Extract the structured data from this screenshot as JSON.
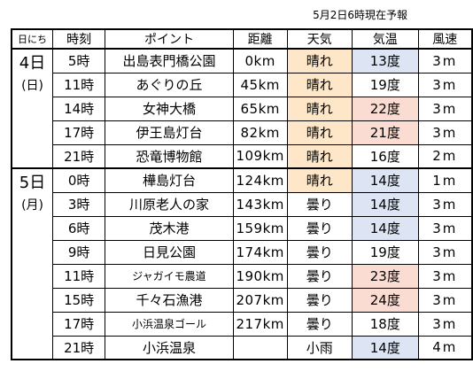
{
  "note": "5月2日6時現在予報",
  "headers": {
    "day": "日にち",
    "time": "時刻",
    "point": "ポイント",
    "distance": "距離",
    "weather": "天気",
    "temp": "気温",
    "wind": "風速"
  },
  "colors": {
    "sunny_bg": "#fde7c8",
    "cool_bg": "#dde4f3",
    "warm_bg": "#fbdcd3"
  },
  "days": [
    {
      "day": "4日",
      "weekday": "(日)",
      "rows": [
        {
          "time": "5時",
          "point": "出島表門橋公園",
          "distance": "0km",
          "weather": "晴れ",
          "weather_bg": "sunny",
          "temp": "13度",
          "temp_bg": "cool",
          "wind": "3m"
        },
        {
          "time": "11時",
          "point": "あぐりの丘",
          "distance": "45km",
          "weather": "晴れ",
          "weather_bg": "sunny",
          "temp": "19度",
          "temp_bg": "",
          "wind": "3m"
        },
        {
          "time": "14時",
          "point": "女神大橋",
          "distance": "65km",
          "weather": "晴れ",
          "weather_bg": "sunny",
          "temp": "22度",
          "temp_bg": "warm",
          "wind": "3m"
        },
        {
          "time": "17時",
          "point": "伊王島灯台",
          "distance": "82km",
          "weather": "晴れ",
          "weather_bg": "sunny",
          "temp": "21度",
          "temp_bg": "warm",
          "wind": "3m"
        },
        {
          "time": "21時",
          "point": "恐竜博物館",
          "distance": "109km",
          "weather": "晴れ",
          "weather_bg": "sunny",
          "temp": "16度",
          "temp_bg": "",
          "wind": "2m"
        }
      ]
    },
    {
      "day": "5日",
      "weekday": "(月)",
      "rows": [
        {
          "time": "0時",
          "point": "樺島灯台",
          "distance": "124km",
          "weather": "晴れ",
          "weather_bg": "sunny",
          "temp": "14度",
          "temp_bg": "cool",
          "wind": "1m"
        },
        {
          "time": "3時",
          "point": "川原老人の家",
          "distance": "143km",
          "weather": "曇り",
          "weather_bg": "",
          "temp": "14度",
          "temp_bg": "cool",
          "wind": "3m"
        },
        {
          "time": "6時",
          "point": "茂木港",
          "distance": "159km",
          "weather": "曇り",
          "weather_bg": "",
          "temp": "14度",
          "temp_bg": "cool",
          "wind": "3m"
        },
        {
          "time": "9時",
          "point": "日見公園",
          "distance": "174km",
          "weather": "曇り",
          "weather_bg": "",
          "temp": "19度",
          "temp_bg": "",
          "wind": "3m"
        },
        {
          "time": "11時",
          "point": "ジャガイモ農道",
          "distance": "190km",
          "weather": "曇り",
          "weather_bg": "",
          "temp": "23度",
          "temp_bg": "warm",
          "wind": "3m",
          "small": true
        },
        {
          "time": "15時",
          "point": "千々石漁港",
          "distance": "207km",
          "weather": "曇り",
          "weather_bg": "",
          "temp": "24度",
          "temp_bg": "warm",
          "wind": "3m"
        },
        {
          "time": "17時",
          "point": "小浜温泉ゴール",
          "distance": "217km",
          "weather": "曇り",
          "weather_bg": "",
          "temp": "18度",
          "temp_bg": "",
          "wind": "3m",
          "small": true
        },
        {
          "time": "21時",
          "point": "小浜温泉",
          "distance": "",
          "weather": "小雨",
          "weather_bg": "",
          "temp": "14度",
          "temp_bg": "cool",
          "wind": "4m"
        }
      ]
    }
  ]
}
